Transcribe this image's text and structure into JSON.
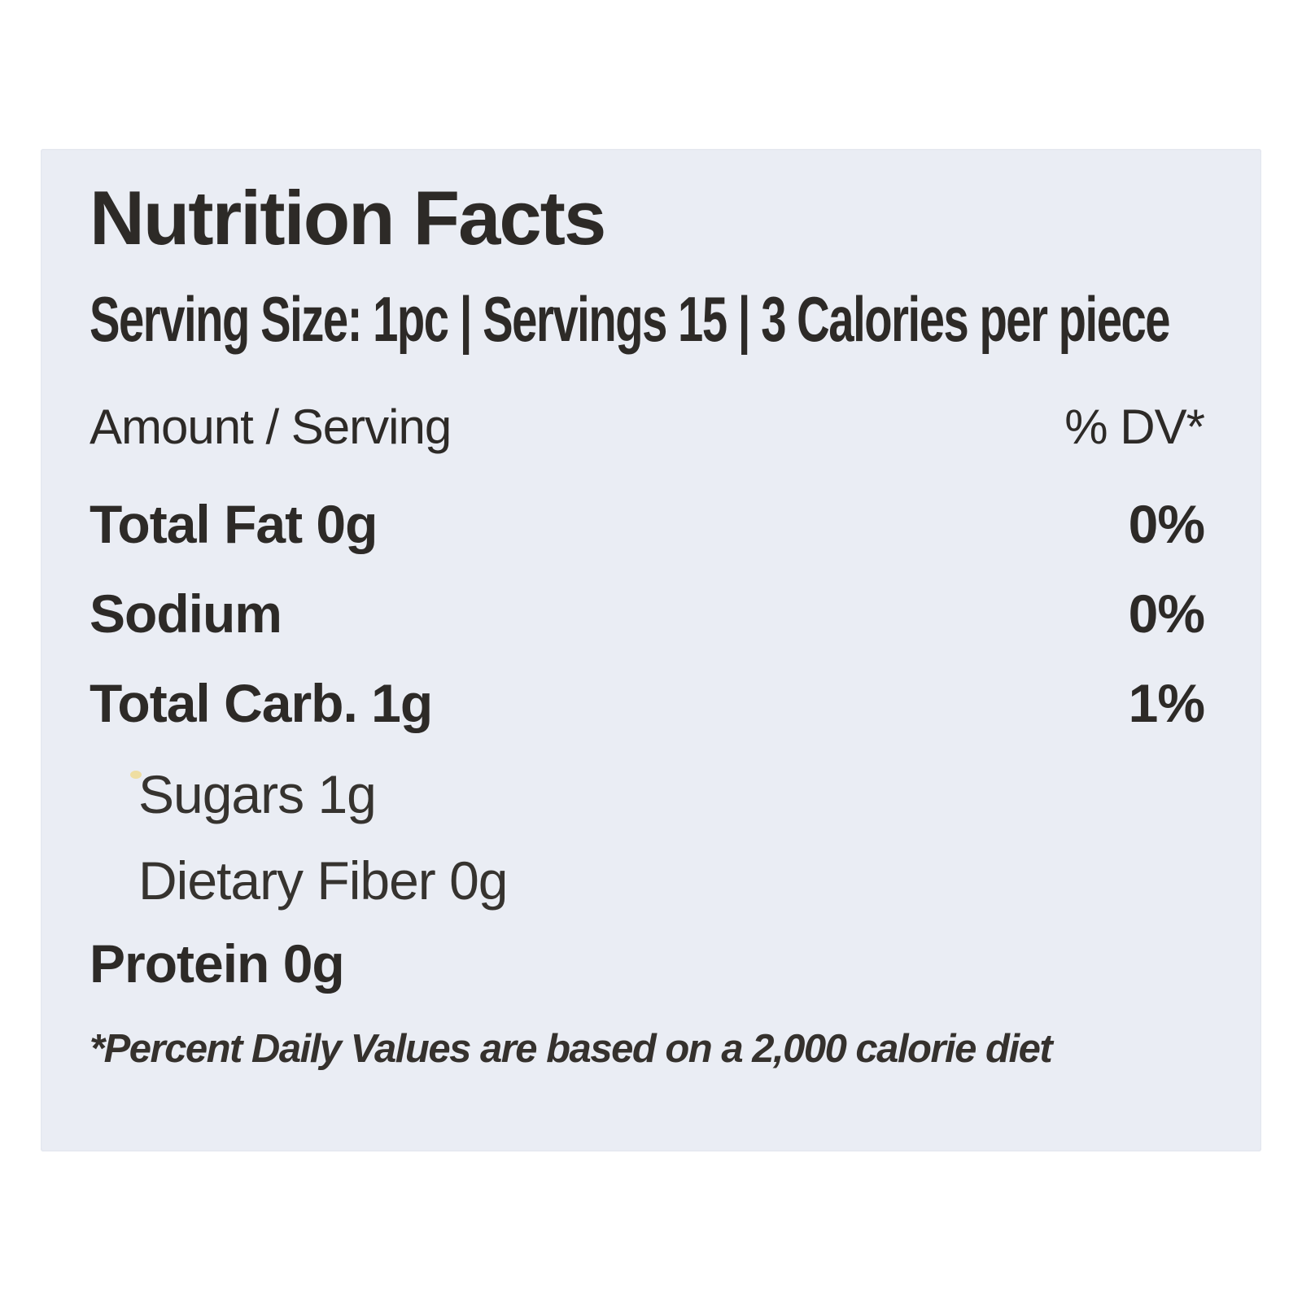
{
  "label": {
    "title": "Nutrition Facts",
    "serving_line": "Serving Size: 1pc | Servings 15 | 3 Calories per piece",
    "header": {
      "amount_label": "Amount / Serving",
      "dv_label": "% DV*"
    },
    "rows": [
      {
        "name": "Total Fat 0g",
        "dv": "0%"
      },
      {
        "name": "Sodium",
        "dv": "0%"
      },
      {
        "name": "Total Carb. 1g",
        "dv": "1%"
      },
      {
        "name": "Sugars 1g",
        "dv": ""
      },
      {
        "name": "Dietary Fiber 0g",
        "dv": ""
      },
      {
        "name": "Protein 0g",
        "dv": ""
      }
    ],
    "footnote": "*Percent Daily Values are based on a 2,000 calorie diet",
    "colors": {
      "page_bg": "#ffffff",
      "label_bg": "#eaedf4",
      "text": "#2d2a27"
    }
  }
}
